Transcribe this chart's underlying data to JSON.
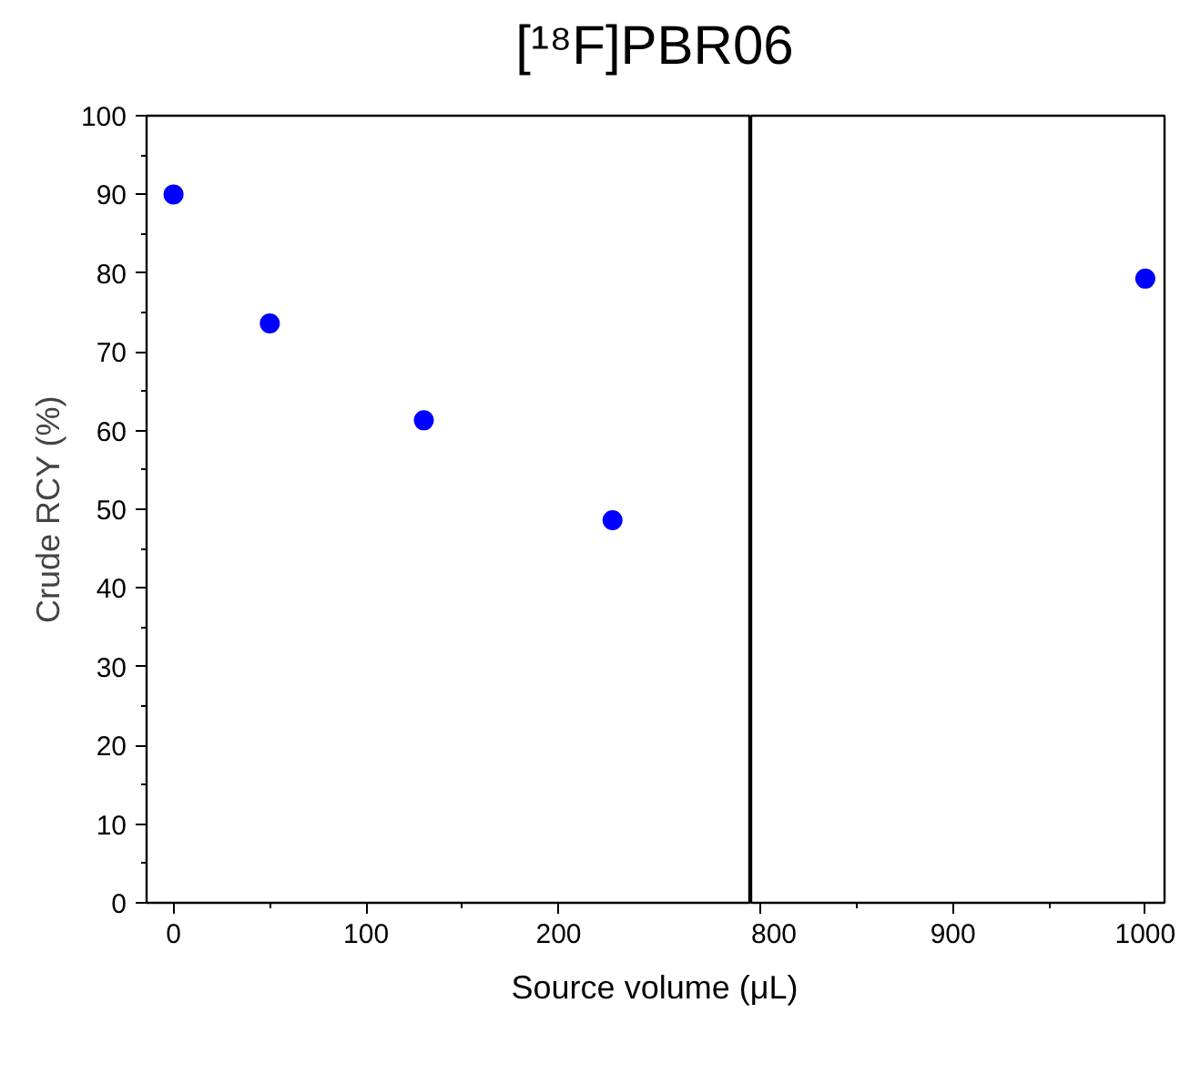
{
  "chart_data": [
    {
      "type": "scatter",
      "title": "[¹⁸F]PBR06",
      "xlabel": "Source volume (μL)",
      "ylabel": "Crude RCY (%)",
      "x": [
        0,
        50,
        130,
        228
      ],
      "values": [
        90,
        73.6,
        61.3,
        48.6
      ],
      "color": "#0000ff",
      "marker": "circle",
      "grid": false,
      "xlim": [
        -14,
        300
      ],
      "xticks": [
        0,
        100,
        200
      ],
      "ylim": [
        0,
        100
      ],
      "yticks": [
        0,
        10,
        20,
        30,
        40,
        50,
        60,
        70,
        80,
        90,
        100
      ]
    },
    {
      "type": "scatter",
      "x": [
        1000
      ],
      "values": [
        79.3
      ],
      "color": "#0000ff",
      "marker": "circle",
      "grid": false,
      "xlim": [
        795,
        1010
      ],
      "xticks": [
        800,
        900,
        1000
      ],
      "ylim": [
        0,
        100
      ],
      "yticks": [
        0,
        10,
        20,
        30,
        40,
        50,
        60,
        70,
        80,
        90,
        100
      ],
      "tick_labels": "x"
    }
  ]
}
